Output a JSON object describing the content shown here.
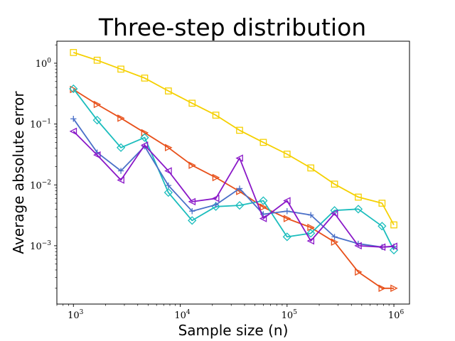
{
  "chart_data": {
    "type": "line",
    "title": "Three-step distribution",
    "xlabel": "Sample size (n)",
    "ylabel": "Average absolute error",
    "xscale": "log",
    "yscale": "log",
    "xlim": [
      700,
      1400000
    ],
    "ylim": [
      0.00011,
      2.3
    ],
    "x": [
      1000,
      1668,
      2783,
      4642,
      7743,
      12915,
      21544,
      35938,
      59948,
      100000,
      166810,
      278256,
      464159,
      774264,
      1000000
    ],
    "xticks": [
      {
        "base": "10",
        "exp": "3",
        "value": 1000
      },
      {
        "base": "10",
        "exp": "4",
        "value": 10000
      },
      {
        "base": "10",
        "exp": "5",
        "value": 100000
      },
      {
        "base": "10",
        "exp": "6",
        "value": 1000000
      }
    ],
    "yticks": [
      {
        "base": "10",
        "exp": "−3",
        "value": 0.001
      },
      {
        "base": "10",
        "exp": "−2",
        "value": 0.01
      },
      {
        "base": "10",
        "exp": "−1",
        "value": 0.1
      },
      {
        "base": "10",
        "exp": "0",
        "value": 1
      }
    ],
    "series": [
      {
        "name": "yellow-square",
        "color": "#f5d000",
        "marker": "square",
        "values": [
          1.5,
          1.12,
          0.8,
          0.57,
          0.35,
          0.22,
          0.14,
          0.079,
          0.05,
          0.032,
          0.019,
          0.0103,
          0.0063,
          0.005,
          0.0022
        ]
      },
      {
        "name": "orange-triangle-right",
        "color": "#e8501a",
        "marker": "triangle-right",
        "values": [
          0.37,
          0.21,
          0.125,
          0.072,
          0.041,
          0.021,
          0.0132,
          0.0078,
          0.0043,
          0.0028,
          0.002,
          0.00115,
          0.00037,
          0.0002,
          0.0002
        ]
      },
      {
        "name": "teal-diamond",
        "color": "#1bbdbd",
        "marker": "diamond",
        "values": [
          0.38,
          0.116,
          0.041,
          0.06,
          0.0075,
          0.0026,
          0.0044,
          0.0046,
          0.0055,
          0.0014,
          0.0016,
          0.0038,
          0.004,
          0.0021,
          0.00085
        ]
      },
      {
        "name": "blue-plus",
        "color": "#4a70c8",
        "marker": "plus",
        "values": [
          0.122,
          0.034,
          0.017,
          0.043,
          0.0098,
          0.0037,
          0.0047,
          0.0087,
          0.0033,
          0.0037,
          0.0032,
          0.0014,
          0.00108,
          0.00095,
          0.00097
        ]
      },
      {
        "name": "purple-triangle-left",
        "color": "#8a18c8",
        "marker": "triangle-left",
        "values": [
          0.076,
          0.031,
          0.012,
          0.045,
          0.017,
          0.0053,
          0.006,
          0.0275,
          0.0028,
          0.0055,
          0.0012,
          0.0034,
          0.001,
          0.00095,
          0.00098
        ]
      }
    ]
  }
}
